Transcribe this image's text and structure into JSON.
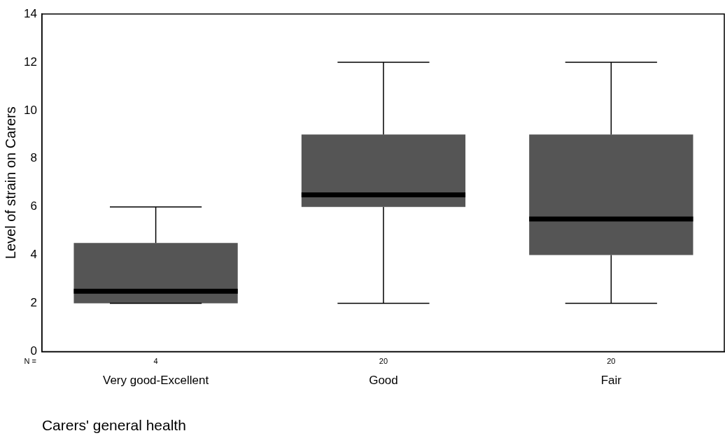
{
  "chart_data": {
    "type": "box",
    "xlabel": "Carers' general health",
    "ylabel": "Level of strain on Carers",
    "categories": [
      "Very good-Excellent",
      "Good",
      "Fair"
    ],
    "boxes": [
      {
        "low": 2,
        "q1": 2,
        "median": 2.5,
        "q3": 4.5,
        "high": 6
      },
      {
        "low": 2,
        "q1": 6,
        "median": 6.5,
        "q3": 9,
        "high": 12
      },
      {
        "low": 2,
        "q1": 4,
        "median": 5.5,
        "q3": 9,
        "high": 12
      }
    ],
    "color": "#555555",
    "ylim": [
      0,
      14
    ],
    "yticks": [
      0,
      2,
      4,
      6,
      8,
      10,
      12,
      14
    ],
    "grid": false,
    "legend": false,
    "annotations": [
      "N =",
      "4",
      "20",
      "20"
    ]
  }
}
